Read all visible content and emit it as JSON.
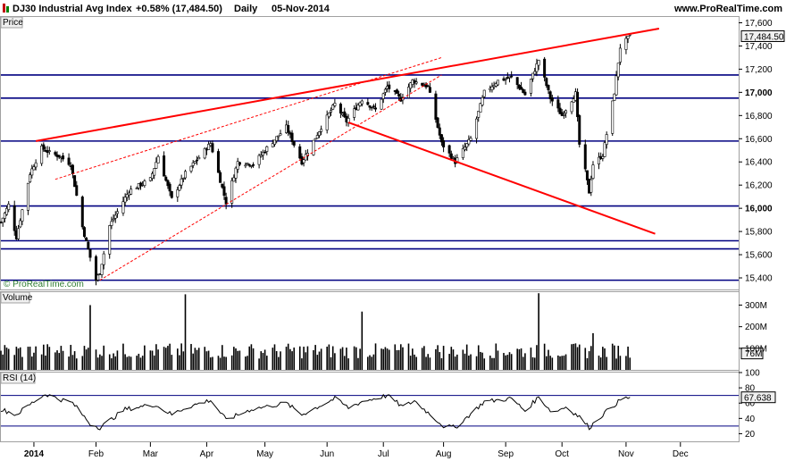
{
  "header": {
    "instrument": "DJ30 Industrial Avg Index",
    "change": "+0.58% (17,484.50)",
    "period": "Daily",
    "date": "05-Nov-2014",
    "site": "www.ProRealTime.com"
  },
  "panels": {
    "price_label": "Price",
    "volume_label": "Volume",
    "rsi_label": "RSI (14)",
    "watermark": "© ProRealTime.com"
  },
  "colors": {
    "candle": "#000000",
    "support": "#000080",
    "trendline": "#ff0000",
    "rsi_line": "#000000",
    "rsi_levels": "#000080",
    "last_price_badge": "#f0f0f0"
  },
  "chart_data": [
    {
      "type": "candlestick",
      "panel": "price",
      "x_axis": {
        "start": "2013-12-16",
        "end": "2014-12-31",
        "ticks": [
          {
            "date": "2014-01-02",
            "label": "2014",
            "bold": true
          },
          {
            "date": "2014-02-03",
            "label": "Feb"
          },
          {
            "date": "2014-03-03",
            "label": "Mar"
          },
          {
            "date": "2014-04-01",
            "label": "Apr"
          },
          {
            "date": "2014-05-01",
            "label": "May"
          },
          {
            "date": "2014-06-02",
            "label": "Jun"
          },
          {
            "date": "2014-07-01",
            "label": "Jul"
          },
          {
            "date": "2014-08-01",
            "label": "Aug"
          },
          {
            "date": "2014-09-02",
            "label": "Sep"
          },
          {
            "date": "2014-10-01",
            "label": "Oct"
          },
          {
            "date": "2014-11-03",
            "label": "Nov"
          },
          {
            "date": "2014-12-01",
            "label": "Dec"
          }
        ]
      },
      "ylim": [
        15300,
        17650
      ],
      "yticks": [
        {
          "v": 15400,
          "label": "15,400"
        },
        {
          "v": 15600,
          "label": "15,600"
        },
        {
          "v": 15800,
          "label": "15,800"
        },
        {
          "v": 16000,
          "label": "16,000",
          "bold": true
        },
        {
          "v": 16200,
          "label": "16,200"
        },
        {
          "v": 16400,
          "label": "16,400"
        },
        {
          "v": 16600,
          "label": "16,600"
        },
        {
          "v": 16800,
          "label": "16,800"
        },
        {
          "v": 17000,
          "label": "17,000",
          "bold": true
        },
        {
          "v": 17200,
          "label": "17,200"
        },
        {
          "v": 17400,
          "label": "17,400"
        },
        {
          "v": 17600,
          "label": "17,600"
        }
      ],
      "last_value_label": "17,484.50",
      "last_value": 17484.5,
      "key_points": [
        {
          "date": "2013-12-16",
          "close": 15880
        },
        {
          "date": "2013-12-20",
          "close": 16030
        },
        {
          "date": "2013-12-24",
          "close": 15750
        },
        {
          "date": "2013-12-31",
          "close": 16300
        },
        {
          "date": "2014-01-06",
          "close": 16520
        },
        {
          "date": "2014-01-10",
          "close": 16480
        },
        {
          "date": "2014-01-15",
          "close": 16450
        },
        {
          "date": "2014-01-21",
          "close": 16380
        },
        {
          "date": "2014-01-27",
          "close": 15840
        },
        {
          "date": "2014-02-03",
          "close": 15380
        },
        {
          "date": "2014-02-05",
          "close": 15450
        },
        {
          "date": "2014-02-10",
          "close": 15850
        },
        {
          "date": "2014-02-20",
          "close": 16150
        },
        {
          "date": "2014-03-03",
          "close": 16250
        },
        {
          "date": "2014-03-07",
          "close": 16450
        },
        {
          "date": "2014-03-14",
          "close": 16080
        },
        {
          "date": "2014-03-21",
          "close": 16300
        },
        {
          "date": "2014-04-03",
          "close": 16560
        },
        {
          "date": "2014-04-11",
          "close": 16050
        },
        {
          "date": "2014-04-17",
          "close": 16400
        },
        {
          "date": "2014-04-25",
          "close": 16380
        },
        {
          "date": "2014-05-02",
          "close": 16520
        },
        {
          "date": "2014-05-12",
          "close": 16700
        },
        {
          "date": "2014-05-20",
          "close": 16400
        },
        {
          "date": "2014-05-30",
          "close": 16700
        },
        {
          "date": "2014-06-06",
          "close": 16900
        },
        {
          "date": "2014-06-12",
          "close": 16750
        },
        {
          "date": "2014-06-20",
          "close": 16940
        },
        {
          "date": "2014-06-27",
          "close": 16850
        },
        {
          "date": "2014-07-03",
          "close": 17050
        },
        {
          "date": "2014-07-10",
          "close": 16940
        },
        {
          "date": "2014-07-16",
          "close": 17100
        },
        {
          "date": "2014-07-24",
          "close": 17050
        },
        {
          "date": "2014-07-31",
          "close": 16560
        },
        {
          "date": "2014-08-07",
          "close": 16400
        },
        {
          "date": "2014-08-15",
          "close": 16600
        },
        {
          "date": "2014-08-22",
          "close": 17000
        },
        {
          "date": "2014-08-29",
          "close": 17100
        },
        {
          "date": "2014-09-05",
          "close": 17130
        },
        {
          "date": "2014-09-12",
          "close": 16980
        },
        {
          "date": "2014-09-19",
          "close": 17280
        },
        {
          "date": "2014-09-25",
          "close": 16950
        },
        {
          "date": "2014-10-01",
          "close": 16800
        },
        {
          "date": "2014-10-08",
          "close": 16990
        },
        {
          "date": "2014-10-10",
          "close": 16550
        },
        {
          "date": "2014-10-13",
          "close": 16320
        },
        {
          "date": "2014-10-15",
          "close": 16140
        },
        {
          "date": "2014-10-17",
          "close": 16380
        },
        {
          "date": "2014-10-22",
          "close": 16460
        },
        {
          "date": "2014-10-28",
          "close": 17000
        },
        {
          "date": "2014-10-31",
          "close": 17390
        },
        {
          "date": "2014-11-05",
          "close": 17484.5
        }
      ],
      "horizontal_lines": [
        17150,
        16950,
        16580,
        16020,
        15720,
        15650,
        15380
      ],
      "trendlines": [
        {
          "style": "solid",
          "from": {
            "date": "2014-01-03",
            "v": 16580
          },
          "to": {
            "date": "2014-11-20",
            "v": 17550
          }
        },
        {
          "style": "solid",
          "from": {
            "date": "2014-06-13",
            "v": 16740
          },
          "to": {
            "date": "2014-11-18",
            "v": 15780
          }
        },
        {
          "style": "dashed",
          "from": {
            "date": "2014-01-13",
            "v": 16250
          },
          "to": {
            "date": "2014-07-31",
            "v": 17300
          }
        },
        {
          "style": "dashed",
          "from": {
            "date": "2014-02-05",
            "v": 15380
          },
          "to": {
            "date": "2014-07-31",
            "v": 17150
          }
        }
      ]
    },
    {
      "type": "bar",
      "panel": "volume",
      "ylim": [
        0,
        360000000
      ],
      "yticks": [
        {
          "v": 76000000,
          "label": "76M",
          "boxed": true
        },
        {
          "v": 100000000,
          "label": "100M"
        },
        {
          "v": 200000000,
          "label": "200M"
        },
        {
          "v": 300000000,
          "label": "300M"
        }
      ],
      "typical_volume": 95000000,
      "spikes": [
        {
          "date": "2014-01-31",
          "v": 300000000
        },
        {
          "date": "2014-03-21",
          "v": 350000000
        },
        {
          "date": "2014-06-20",
          "v": 270000000
        },
        {
          "date": "2014-09-19",
          "v": 355000000
        },
        {
          "date": "2014-10-17",
          "v": 170000000
        }
      ]
    },
    {
      "type": "line",
      "panel": "rsi",
      "ylim": [
        10,
        100
      ],
      "yticks": [
        {
          "v": 20,
          "label": "20"
        },
        {
          "v": 40,
          "label": "40"
        },
        {
          "v": 60,
          "label": "60"
        },
        {
          "v": 80,
          "label": "80"
        },
        {
          "v": 100,
          "label": "100"
        }
      ],
      "levels": [
        70,
        30
      ],
      "last_value_label": "67.638",
      "last_value": 67.638,
      "points": [
        {
          "date": "2013-12-16",
          "v": 52
        },
        {
          "date": "2013-12-24",
          "v": 45
        },
        {
          "date": "2014-01-02",
          "v": 62
        },
        {
          "date": "2014-01-08",
          "v": 72
        },
        {
          "date": "2014-01-14",
          "v": 66
        },
        {
          "date": "2014-01-22",
          "v": 60
        },
        {
          "date": "2014-01-31",
          "v": 33
        },
        {
          "date": "2014-02-05",
          "v": 28
        },
        {
          "date": "2014-02-18",
          "v": 52
        },
        {
          "date": "2014-03-05",
          "v": 58
        },
        {
          "date": "2014-03-14",
          "v": 45
        },
        {
          "date": "2014-03-21",
          "v": 54
        },
        {
          "date": "2014-04-03",
          "v": 64
        },
        {
          "date": "2014-04-11",
          "v": 38
        },
        {
          "date": "2014-04-24",
          "v": 52
        },
        {
          "date": "2014-05-12",
          "v": 60
        },
        {
          "date": "2014-05-20",
          "v": 45
        },
        {
          "date": "2014-06-06",
          "v": 66
        },
        {
          "date": "2014-06-13",
          "v": 54
        },
        {
          "date": "2014-06-20",
          "v": 62
        },
        {
          "date": "2014-07-03",
          "v": 70
        },
        {
          "date": "2014-07-11",
          "v": 55
        },
        {
          "date": "2014-07-17",
          "v": 63
        },
        {
          "date": "2014-08-01",
          "v": 30
        },
        {
          "date": "2014-08-07",
          "v": 28
        },
        {
          "date": "2014-08-22",
          "v": 62
        },
        {
          "date": "2014-09-05",
          "v": 66
        },
        {
          "date": "2014-09-12",
          "v": 50
        },
        {
          "date": "2014-09-19",
          "v": 68
        },
        {
          "date": "2014-09-26",
          "v": 48
        },
        {
          "date": "2014-10-03",
          "v": 55
        },
        {
          "date": "2014-10-10",
          "v": 42
        },
        {
          "date": "2014-10-15",
          "v": 28
        },
        {
          "date": "2014-10-22",
          "v": 45
        },
        {
          "date": "2014-10-31",
          "v": 64
        },
        {
          "date": "2014-11-05",
          "v": 67.638
        }
      ]
    }
  ]
}
